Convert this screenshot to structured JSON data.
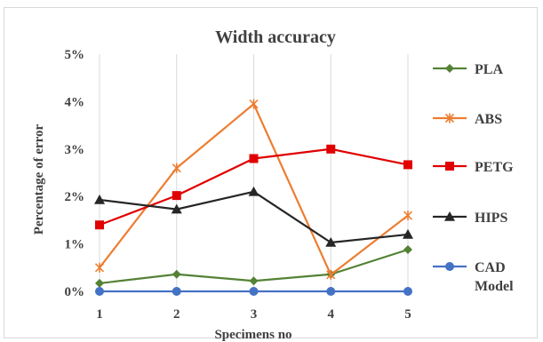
{
  "chart_data": {
    "type": "line",
    "title": "Width accuracy",
    "xlabel": "Specimens no",
    "ylabel": "Percentage of error",
    "x": [
      "1",
      "2",
      "3",
      "4",
      "5"
    ],
    "ylim": [
      0,
      5
    ],
    "y_ticks": [
      "0%",
      "1%",
      "2%",
      "3%",
      "4%",
      "5%"
    ],
    "grid": "vertical",
    "legend_position": "right",
    "series": [
      {
        "name": "PLA",
        "color": "#548235",
        "marker": "diamond",
        "values": [
          0.17,
          0.36,
          0.22,
          0.36,
          0.88
        ]
      },
      {
        "name": "ABS",
        "color": "#ed7d31",
        "marker": "x",
        "values": [
          0.5,
          2.6,
          3.95,
          0.35,
          1.6
        ]
      },
      {
        "name": "PETG",
        "color": "#e00000",
        "marker": "square",
        "values": [
          1.4,
          2.02,
          2.8,
          3.0,
          2.67
        ]
      },
      {
        "name": "HIPS",
        "color": "#262626",
        "marker": "triangle",
        "values": [
          1.93,
          1.73,
          2.1,
          1.03,
          1.2
        ]
      },
      {
        "name": "CAD Model",
        "name_lines": [
          "CAD",
          "Model"
        ],
        "color": "#4472c4",
        "marker": "circle",
        "values": [
          0,
          0,
          0,
          0,
          0
        ]
      }
    ]
  }
}
